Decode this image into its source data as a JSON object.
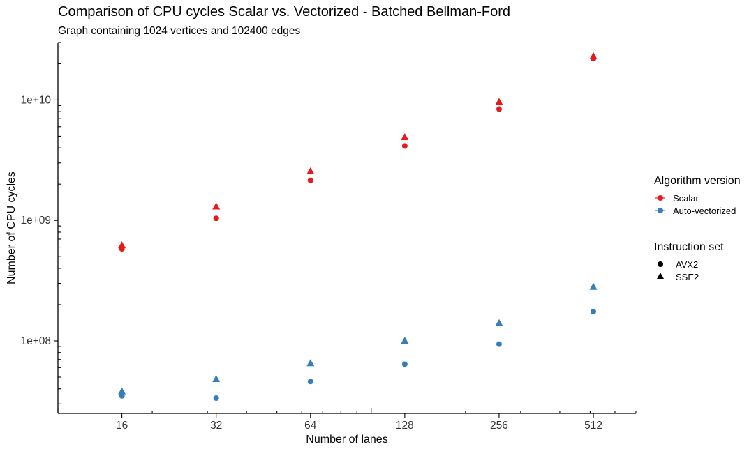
{
  "chart_data": {
    "type": "scatter",
    "title": "Comparison of CPU cycles Scalar vs. Vectorized - Batched Bellman-Ford",
    "subtitle": "Graph containing 1024 vertices and 102400 edges",
    "xlabel": "Number of lanes",
    "ylabel": "Number of CPU cycles",
    "x_scale": "log2",
    "y_scale": "log10",
    "x_ticks": [
      16,
      32,
      64,
      128,
      256,
      512
    ],
    "x_tick_labels": [
      "16",
      "32",
      "64",
      "128",
      "256",
      "512"
    ],
    "y_ticks": [
      100000000,
      1000000000,
      10000000000
    ],
    "y_tick_labels": [
      "1e+08",
      "1e+09",
      "1e+10"
    ],
    "xlim": [
      10,
      700
    ],
    "ylim": [
      25000000,
      30000000000
    ],
    "grid": false,
    "legend_position": "right",
    "legend": {
      "color_title": "Algorithm version",
      "color_entries": [
        {
          "label": "Scalar",
          "color": "#e41a1c"
        },
        {
          "label": "Auto-vectorized",
          "color": "#377eb8"
        }
      ],
      "shape_title": "Instruction set",
      "shape_entries": [
        {
          "label": "AVX2",
          "shape": "circle"
        },
        {
          "label": "SSE2",
          "shape": "triangle"
        }
      ]
    },
    "series": [
      {
        "algorithm": "Scalar",
        "instruction_set": "AVX2",
        "color": "#e41a1c",
        "shape": "circle",
        "x": [
          16,
          32,
          64,
          128,
          256,
          512
        ],
        "y": [
          580000000,
          1040000000,
          2150000000,
          4150000000,
          8400000000,
          22000000000
        ]
      },
      {
        "algorithm": "Scalar",
        "instruction_set": "SSE2",
        "color": "#e41a1c",
        "shape": "triangle",
        "x": [
          16,
          32,
          64,
          128,
          256,
          512
        ],
        "y": [
          620000000,
          1300000000,
          2550000000,
          4900000000,
          9600000000,
          23000000000
        ]
      },
      {
        "algorithm": "Auto-vectorized",
        "instruction_set": "AVX2",
        "color": "#377eb8",
        "shape": "circle",
        "x": [
          16,
          32,
          64,
          128,
          256,
          512
        ],
        "y": [
          35000000,
          33500000,
          46000000,
          64000000,
          94000000,
          175000000
        ]
      },
      {
        "algorithm": "Auto-vectorized",
        "instruction_set": "SSE2",
        "color": "#377eb8",
        "shape": "triangle",
        "x": [
          16,
          32,
          64,
          128,
          256,
          512
        ],
        "y": [
          38000000,
          48000000,
          65000000,
          100000000,
          140000000,
          280000000
        ]
      }
    ]
  }
}
